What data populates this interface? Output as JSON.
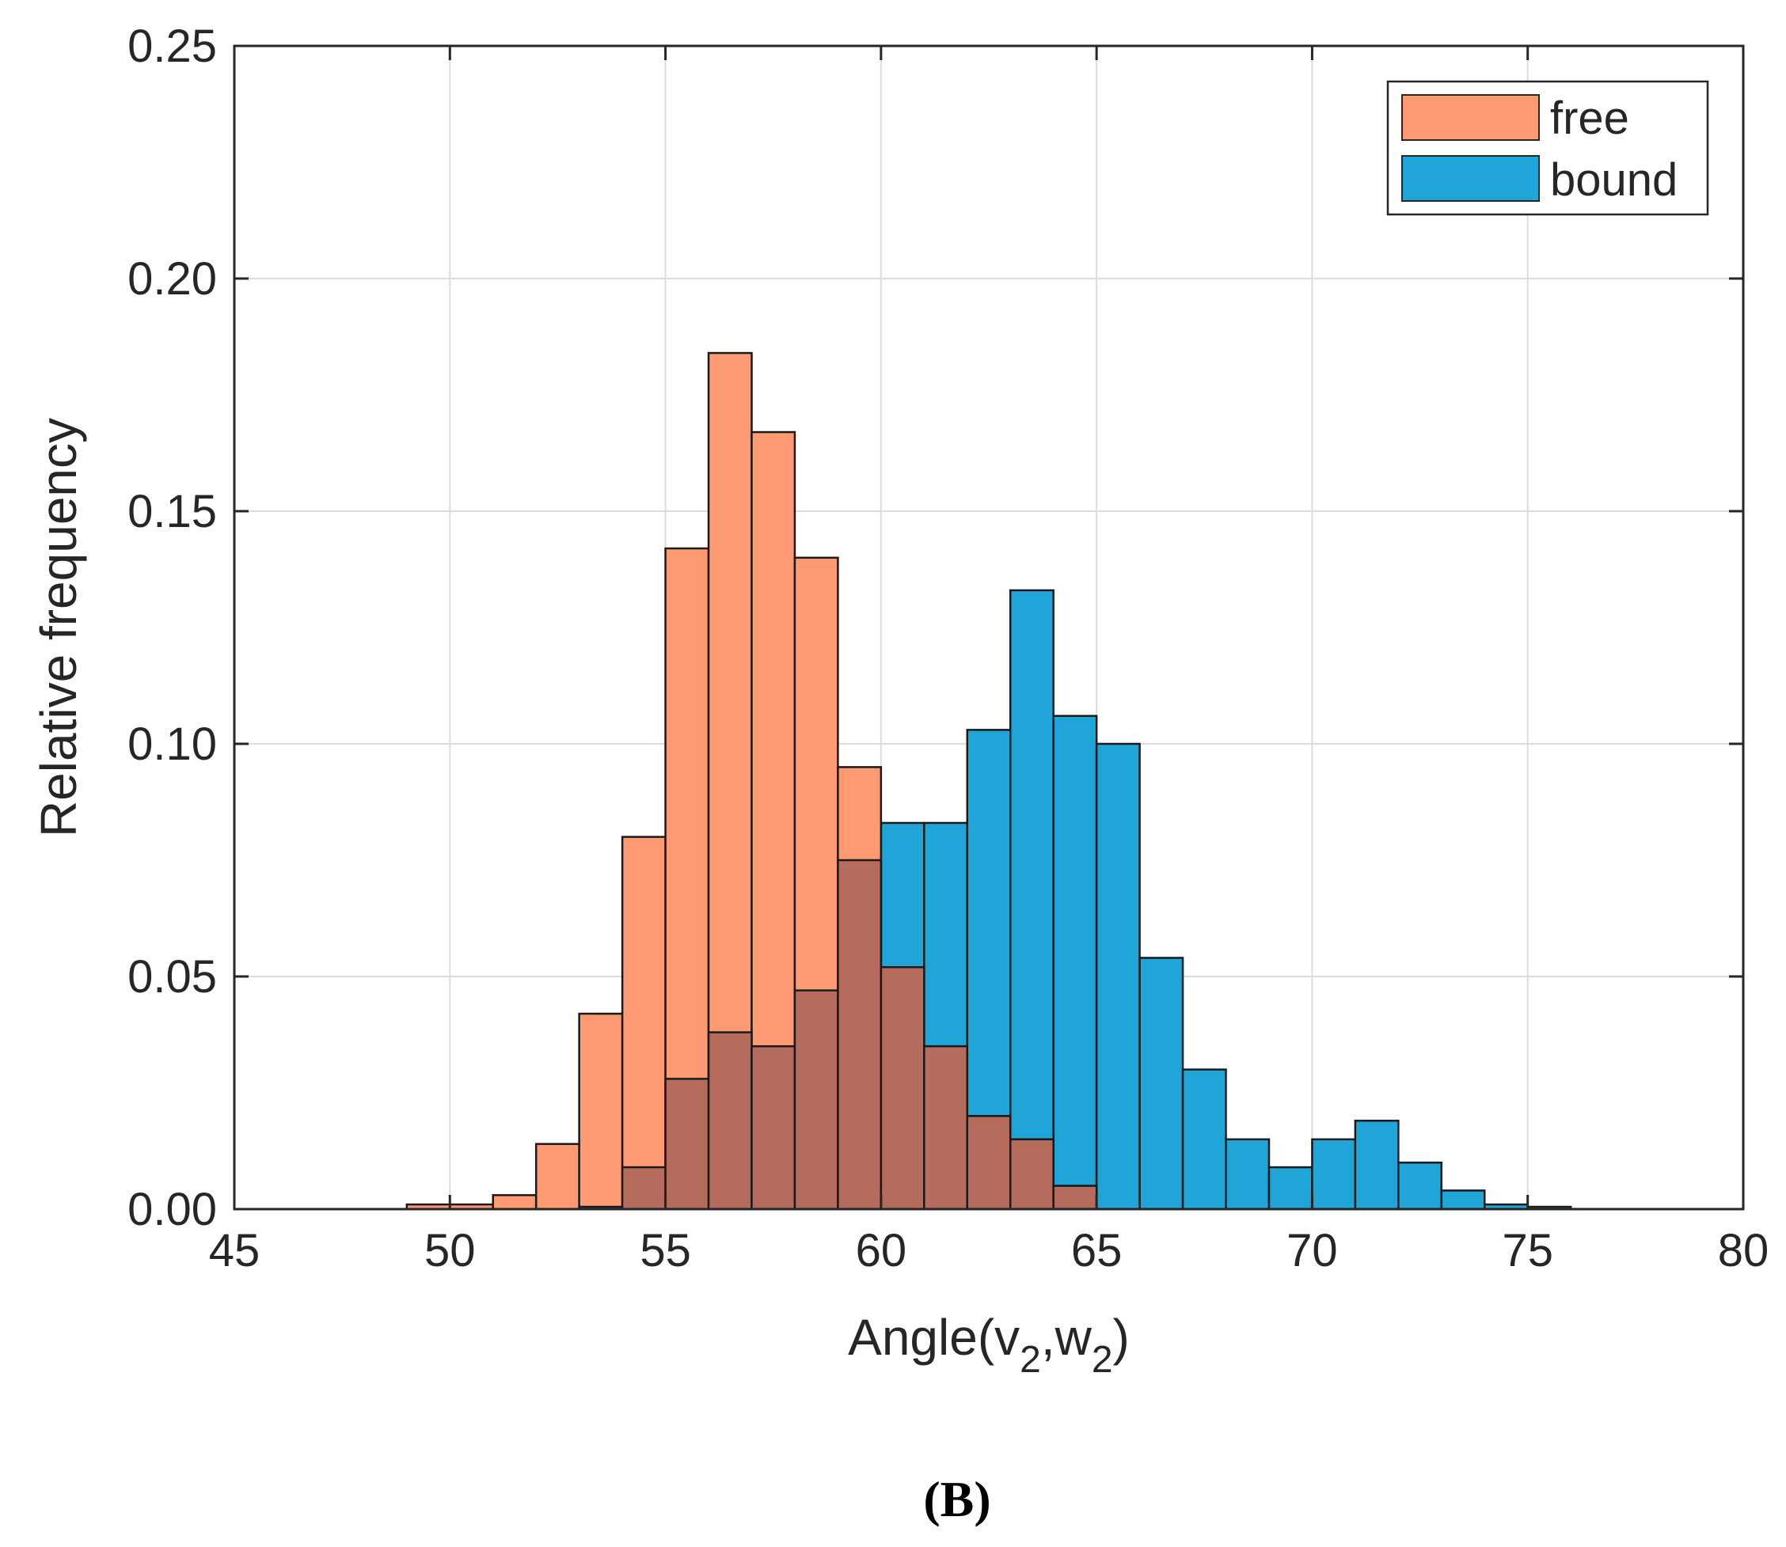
{
  "chart_data": {
    "type": "bar",
    "subtype": "overlapping-histogram",
    "title": "",
    "panel_label": "(B)",
    "xlabel": {
      "main": "Angle(v",
      "sub1": "2",
      "mid": ",w",
      "sub2": "2",
      "end": ")"
    },
    "ylabel": "Relative frequency",
    "xlim": [
      45,
      80
    ],
    "ylim": [
      0,
      0.25
    ],
    "x_ticks": [
      45,
      50,
      55,
      60,
      65,
      70,
      75,
      80
    ],
    "x_tick_labels": [
      "45",
      "50",
      "55",
      "60",
      "65",
      "70",
      "75",
      "80"
    ],
    "y_ticks": [
      0,
      0.05,
      0.1,
      0.15,
      0.2,
      0.25
    ],
    "y_tick_labels": [
      "0.00",
      "0.05",
      "0.10",
      "0.15",
      "0.20",
      "0.25"
    ],
    "grid": true,
    "legend_position": "top-right",
    "bin_width": 1,
    "overlap_color": "#B56C5D",
    "series": [
      {
        "name": "free",
        "color": "#FF9A73",
        "bins": [
          {
            "start": 49,
            "value": 0.001
          },
          {
            "start": 50,
            "value": 0.001
          },
          {
            "start": 51,
            "value": 0.003
          },
          {
            "start": 52,
            "value": 0.014
          },
          {
            "start": 53,
            "value": 0.042
          },
          {
            "start": 54,
            "value": 0.08
          },
          {
            "start": 55,
            "value": 0.142
          },
          {
            "start": 56,
            "value": 0.184
          },
          {
            "start": 57,
            "value": 0.167
          },
          {
            "start": 58,
            "value": 0.14
          },
          {
            "start": 59,
            "value": 0.095
          },
          {
            "start": 60,
            "value": 0.052
          },
          {
            "start": 61,
            "value": 0.035
          },
          {
            "start": 62,
            "value": 0.02
          },
          {
            "start": 63,
            "value": 0.015
          },
          {
            "start": 64,
            "value": 0.005
          }
        ]
      },
      {
        "name": "bound",
        "color": "#1FA5D8",
        "bins": [
          {
            "start": 53,
            "value": 0.0005
          },
          {
            "start": 54,
            "value": 0.009
          },
          {
            "start": 55,
            "value": 0.028
          },
          {
            "start": 56,
            "value": 0.038
          },
          {
            "start": 57,
            "value": 0.035
          },
          {
            "start": 58,
            "value": 0.047
          },
          {
            "start": 59,
            "value": 0.075
          },
          {
            "start": 60,
            "value": 0.083
          },
          {
            "start": 61,
            "value": 0.083
          },
          {
            "start": 62,
            "value": 0.103
          },
          {
            "start": 63,
            "value": 0.133
          },
          {
            "start": 64,
            "value": 0.106
          },
          {
            "start": 65,
            "value": 0.1
          },
          {
            "start": 66,
            "value": 0.054
          },
          {
            "start": 67,
            "value": 0.03
          },
          {
            "start": 68,
            "value": 0.015
          },
          {
            "start": 69,
            "value": 0.009
          },
          {
            "start": 70,
            "value": 0.015
          },
          {
            "start": 71,
            "value": 0.019
          },
          {
            "start": 72,
            "value": 0.01
          },
          {
            "start": 73,
            "value": 0.004
          },
          {
            "start": 74,
            "value": 0.001
          },
          {
            "start": 75,
            "value": 0.0005
          }
        ]
      }
    ]
  }
}
